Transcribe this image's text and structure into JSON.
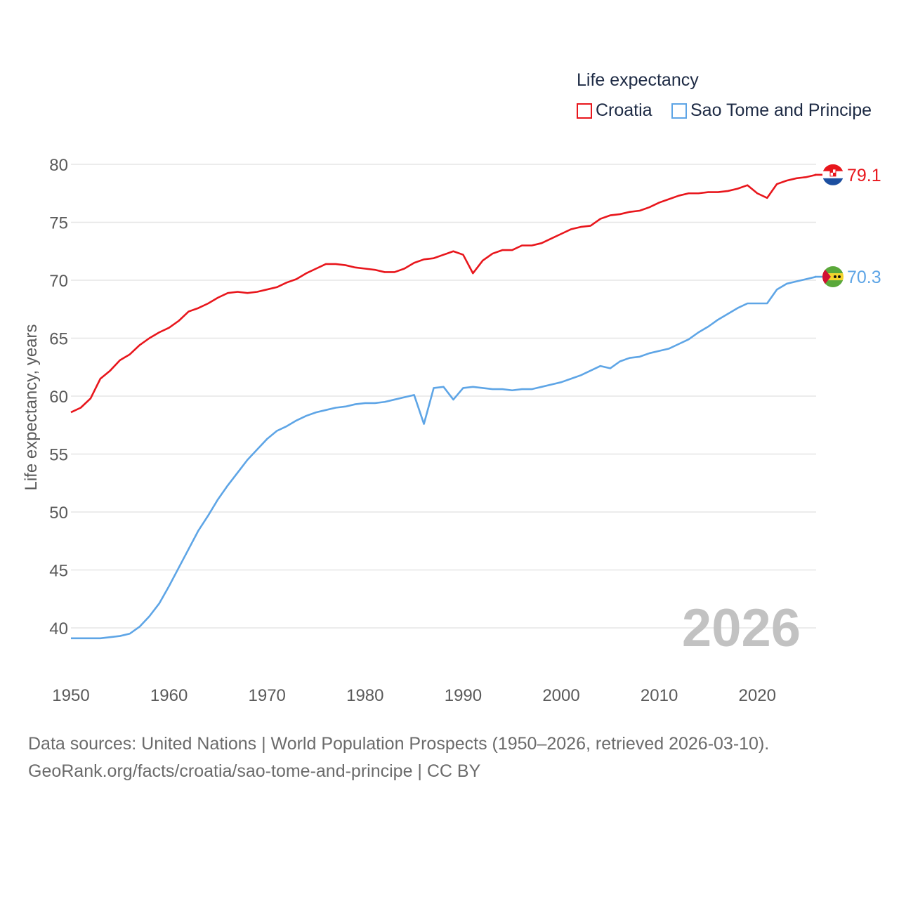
{
  "legend": {
    "title": "Life expectancy",
    "items": [
      {
        "name": "Croatia",
        "color": "#e8161c"
      },
      {
        "name": "Sao Tome and Principe",
        "color": "#5ea5e6"
      }
    ]
  },
  "footer": {
    "line1": "Data sources: United Nations | World Population Prospects (1950–2026, retrieved 2026-03-10).",
    "line2": "GeoRank.org/facts/croatia/sao-tome-and-principe | CC BY"
  },
  "chart_data": {
    "type": "line",
    "title": "Life expectancy",
    "xlabel": "",
    "ylabel": "Life expectancy, years",
    "xlim": [
      1950,
      2026
    ],
    "ylim": [
      37.5,
      81
    ],
    "yticks": [
      40,
      45,
      50,
      55,
      60,
      65,
      70,
      75,
      80
    ],
    "xticks": [
      1950,
      1960,
      1970,
      1980,
      1990,
      2000,
      2010,
      2020
    ],
    "grid": true,
    "watermark_year": "2026",
    "x": [
      1950,
      1951,
      1952,
      1953,
      1954,
      1955,
      1956,
      1957,
      1958,
      1959,
      1960,
      1961,
      1962,
      1963,
      1964,
      1965,
      1966,
      1967,
      1968,
      1969,
      1970,
      1971,
      1972,
      1973,
      1974,
      1975,
      1976,
      1977,
      1978,
      1979,
      1980,
      1981,
      1982,
      1983,
      1984,
      1985,
      1986,
      1987,
      1988,
      1989,
      1990,
      1991,
      1992,
      1993,
      1994,
      1995,
      1996,
      1997,
      1998,
      1999,
      2000,
      2001,
      2002,
      2003,
      2004,
      2005,
      2006,
      2007,
      2008,
      2009,
      2010,
      2011,
      2012,
      2013,
      2014,
      2015,
      2016,
      2017,
      2018,
      2019,
      2020,
      2021,
      2022,
      2023,
      2024,
      2025,
      2026
    ],
    "series": [
      {
        "name": "Croatia",
        "color": "#e8161c",
        "end_label": "79.1",
        "flag": "croatia-flag",
        "values": [
          58.6,
          59.0,
          59.8,
          61.5,
          62.2,
          63.1,
          63.6,
          64.4,
          65.0,
          65.5,
          65.9,
          66.5,
          67.3,
          67.6,
          68.0,
          68.5,
          68.9,
          69.0,
          68.9,
          69.0,
          69.2,
          69.4,
          69.8,
          70.1,
          70.6,
          71.0,
          71.4,
          71.4,
          71.3,
          71.1,
          71.0,
          70.9,
          70.7,
          70.7,
          71.0,
          71.5,
          71.8,
          71.9,
          72.2,
          72.5,
          72.2,
          70.6,
          71.7,
          72.3,
          72.6,
          72.6,
          73.0,
          73.0,
          73.2,
          73.6,
          74.0,
          74.4,
          74.6,
          74.7,
          75.3,
          75.6,
          75.7,
          75.9,
          76.0,
          76.3,
          76.7,
          77.0,
          77.3,
          77.5,
          77.5,
          77.6,
          77.6,
          77.7,
          77.9,
          78.2,
          77.5,
          77.1,
          78.3,
          78.6,
          78.8,
          78.9,
          79.1
        ]
      },
      {
        "name": "Sao Tome and Principe",
        "color": "#5ea5e6",
        "end_label": "70.3",
        "flag": "sao-tome-and-principe-flag",
        "values": [
          39.1,
          39.1,
          39.1,
          39.1,
          39.2,
          39.3,
          39.5,
          40.1,
          41.0,
          42.1,
          43.6,
          45.2,
          46.8,
          48.4,
          49.7,
          51.1,
          52.3,
          53.4,
          54.5,
          55.4,
          56.3,
          57.0,
          57.4,
          57.9,
          58.3,
          58.6,
          58.8,
          59.0,
          59.1,
          59.3,
          59.4,
          59.4,
          59.5,
          59.7,
          59.9,
          60.1,
          57.6,
          60.7,
          60.8,
          59.7,
          60.7,
          60.8,
          60.7,
          60.6,
          60.6,
          60.5,
          60.6,
          60.6,
          60.8,
          61.0,
          61.2,
          61.5,
          61.8,
          62.2,
          62.6,
          62.4,
          63.0,
          63.3,
          63.4,
          63.7,
          63.9,
          64.1,
          64.5,
          64.9,
          65.5,
          66.0,
          66.6,
          67.1,
          67.6,
          68.0,
          68.0,
          68.0,
          69.2,
          69.7,
          69.9,
          70.1,
          70.3
        ]
      }
    ]
  }
}
